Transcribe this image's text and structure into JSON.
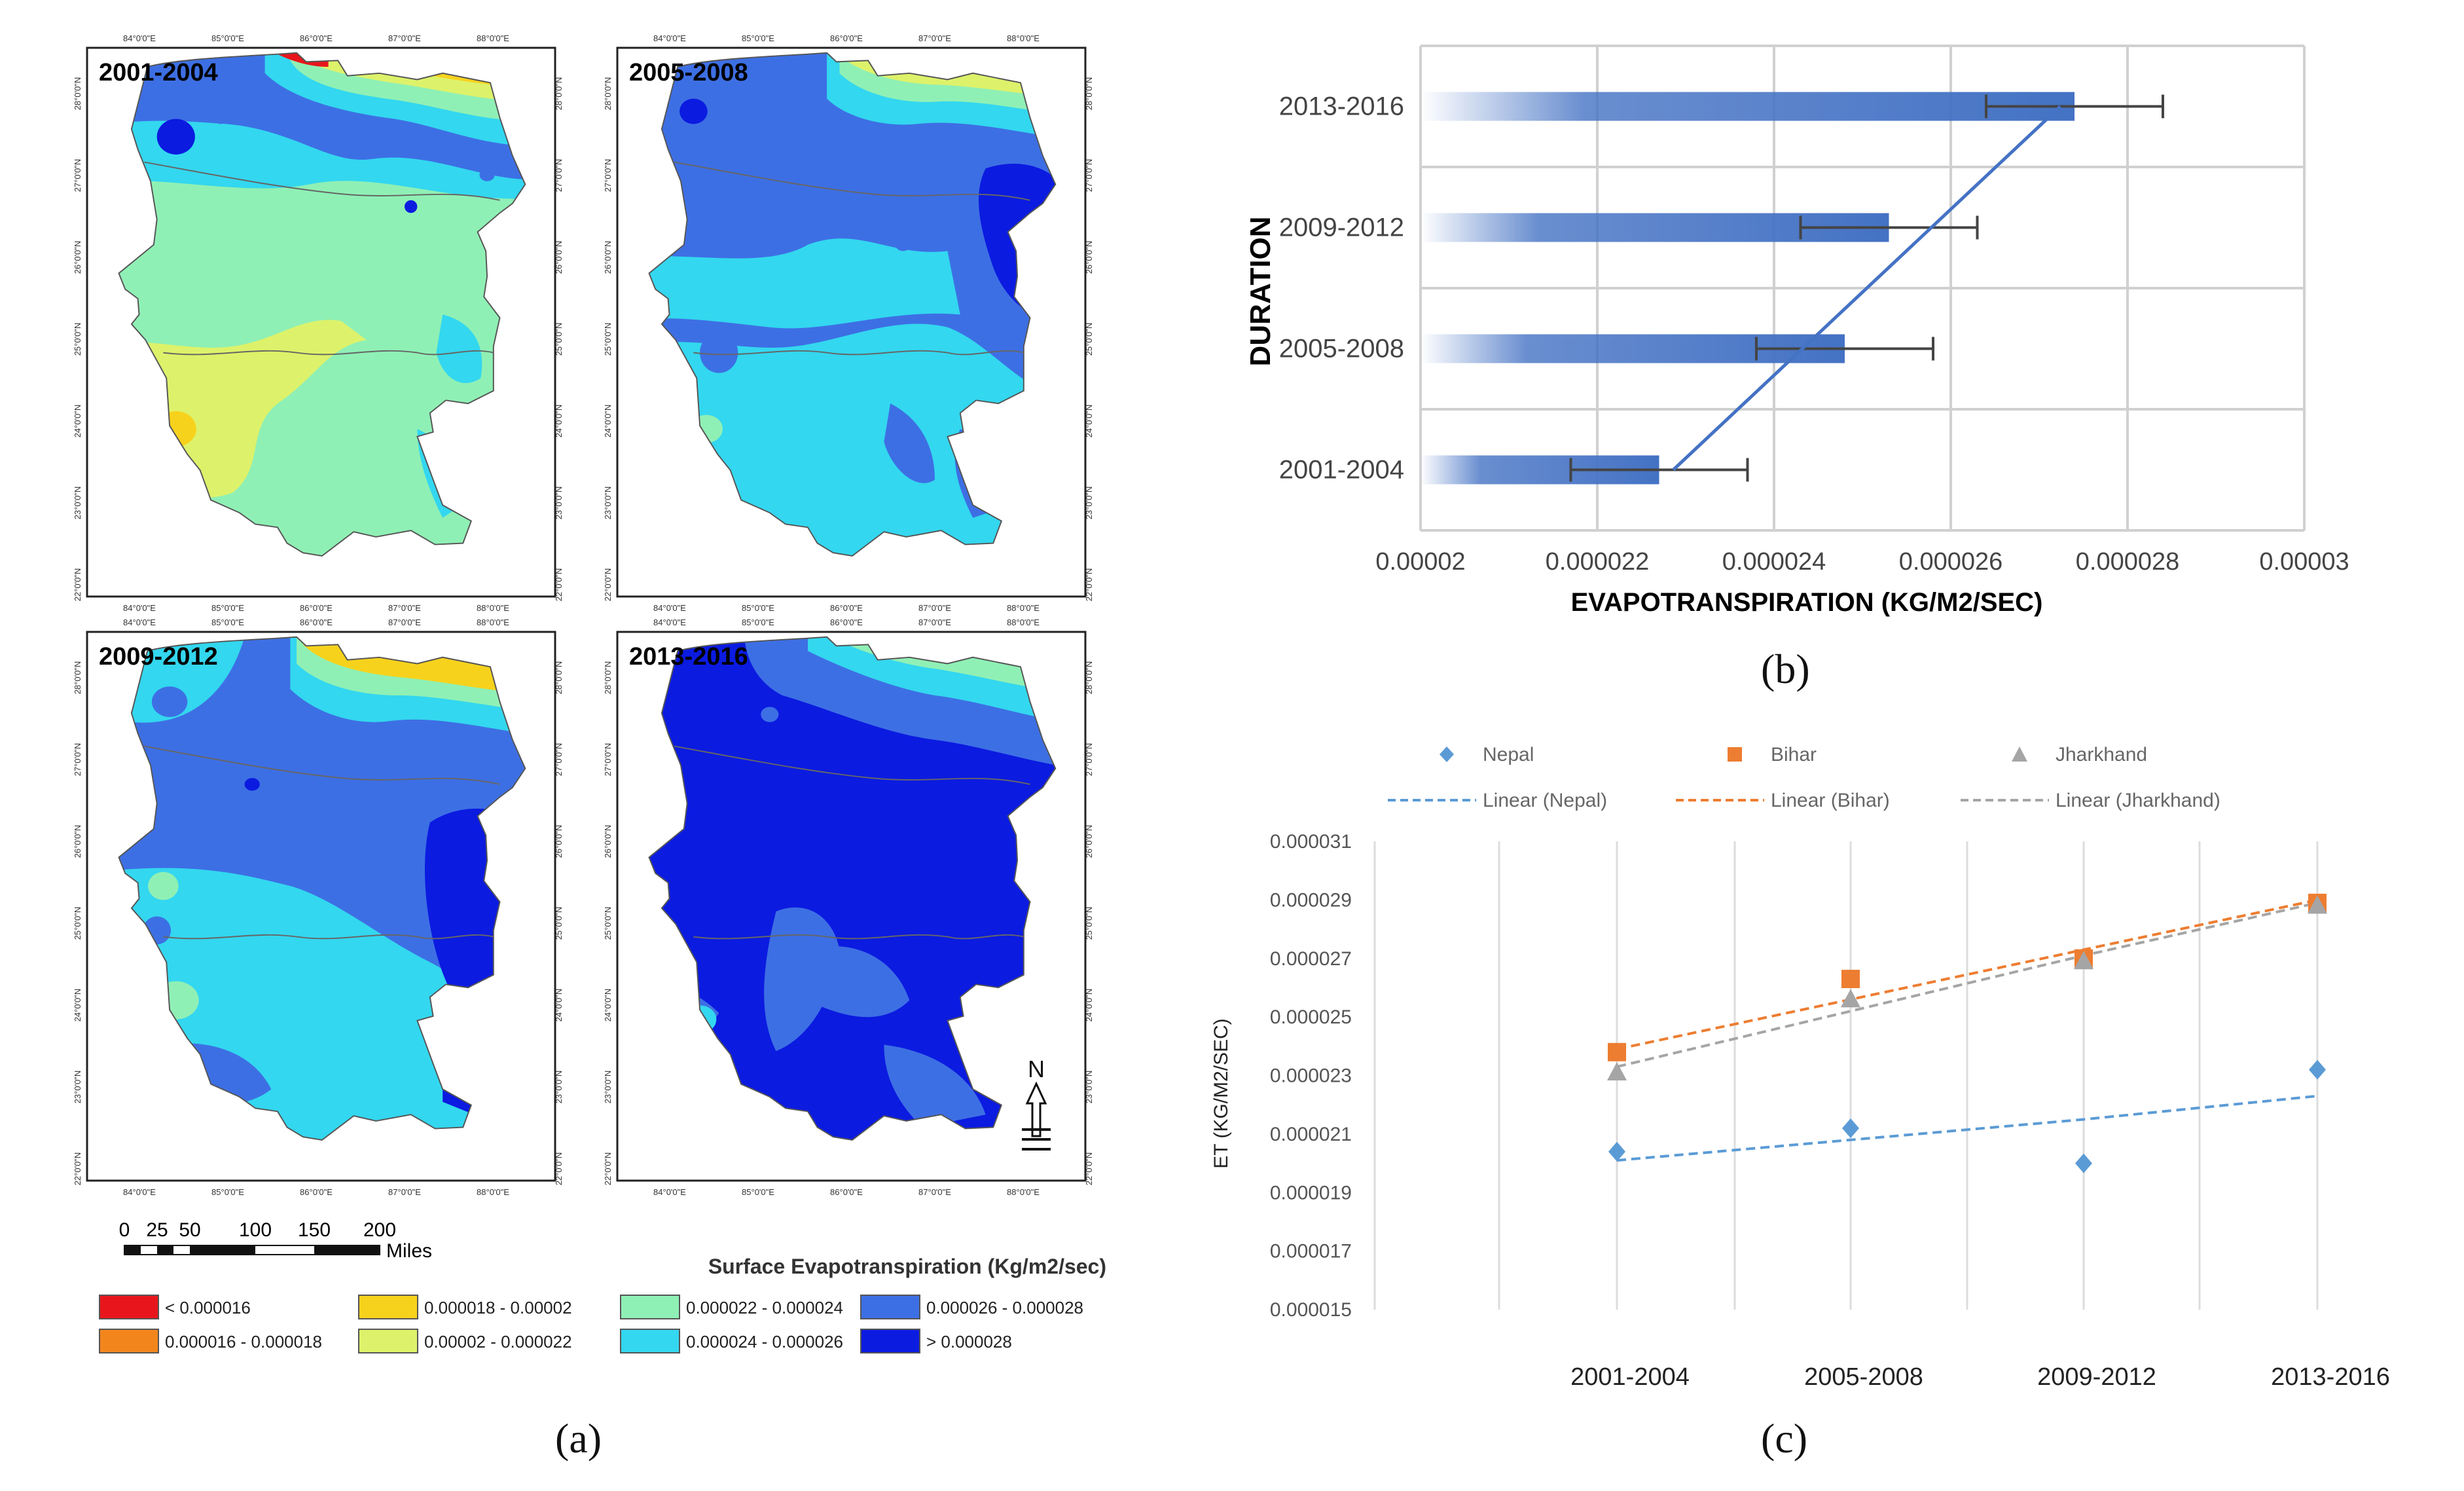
{
  "panel_captions": {
    "a": "(a)",
    "b": "(b)",
    "c": "(c)"
  },
  "maps": {
    "titles": [
      "2001-2004",
      "2005-2008",
      "2009-2012",
      "2013-2016"
    ],
    "lon_labels": [
      "84°0'0\"E",
      "85°0'0\"E",
      "86°0'0\"E",
      "87°0'0\"E",
      "88°0'0\"E"
    ],
    "lat_labels": [
      "28°0'0\"N",
      "27°0'0\"N",
      "26°0'0\"N",
      "25°0'0\"N",
      "24°0'0\"N",
      "23°0'0\"N",
      "22°0'0\"N"
    ],
    "scale_numbers": [
      "0",
      "25",
      "50",
      "100",
      "150",
      "200"
    ],
    "scale_unit": "Miles",
    "north_label": "N",
    "legend_title": "Surface Evapotranspiration (Kg/m2/sec)",
    "legend": [
      {
        "label": "< 0.000016",
        "color": "#e8161c"
      },
      {
        "label": "0.000016 - 0.000018",
        "color": "#f2861d"
      },
      {
        "label": "0.000018 - 0.00002",
        "color": "#f7d21c"
      },
      {
        "label": "0.00002 - 0.000022",
        "color": "#ddf26a"
      },
      {
        "label": "0.000022 - 0.000024",
        "color": "#8ff0b5"
      },
      {
        "label": "0.000024 - 0.000026",
        "color": "#33d7ef"
      },
      {
        "label": "0.000026 - 0.000028",
        "color": "#3d6fe4"
      },
      {
        "label": "> 0.000028",
        "color": "#0b1be0"
      }
    ]
  },
  "chart_data": [
    {
      "type": "bar",
      "orientation": "horizontal",
      "categories": [
        "2001-2004",
        "2005-2008",
        "2009-2012",
        "2013-2016"
      ],
      "values": [
        2.27e-05,
        2.48e-05,
        2.53e-05,
        2.74e-05
      ],
      "error": [
        1e-06,
        1e-06,
        1e-06,
        1e-06
      ],
      "trendline": "linear",
      "xlabel": "EVAPOTRANSPIRATION (KG/M2/SEC)",
      "ylabel": "DURATION",
      "xlim": [
        2e-05,
        3e-05
      ],
      "xticks": [
        "0.00002",
        "0.000022",
        "0.000024",
        "0.000026",
        "0.000028",
        "0.00003"
      ],
      "bar_color": "#4472c4",
      "grid": true
    },
    {
      "type": "scatter",
      "categories": [
        "2001-2004",
        "2005-2008",
        "2009-2012",
        "2013-2016"
      ],
      "series": [
        {
          "name": "Nepal",
          "marker": "diamond",
          "color": "#5b9bd5",
          "values": [
            2.04e-05,
            2.12e-05,
            2e-05,
            2.32e-05
          ],
          "trend_name": "Linear (Nepal)",
          "trend": [
            2.01e-05,
            2.08e-05,
            2.15e-05,
            2.23e-05
          ]
        },
        {
          "name": "Bihar",
          "marker": "square",
          "color": "#ed7d31",
          "values": [
            2.38e-05,
            2.63e-05,
            2.7e-05,
            2.89e-05
          ],
          "trend_name": "Linear (Bihar)",
          "trend": [
            2.39e-05,
            2.56e-05,
            2.73e-05,
            2.9e-05
          ]
        },
        {
          "name": "Jharkhand",
          "marker": "triangle",
          "color": "#a5a5a5",
          "values": [
            2.31e-05,
            2.56e-05,
            2.69e-05,
            2.88e-05
          ],
          "trend_name": "Linear (Jharkhand)",
          "trend": [
            2.33e-05,
            2.52e-05,
            2.71e-05,
            2.89e-05
          ]
        }
      ],
      "ylabel": "ET (KG/M2/SEC)",
      "ylim": [
        1.5e-05,
        3.1e-05
      ],
      "yticks": [
        "0.000031",
        "0.000029",
        "0.000027",
        "0.000025",
        "0.000023",
        "0.000021",
        "0.000019",
        "0.000017",
        "0.000015"
      ],
      "grid": "vertical"
    }
  ]
}
